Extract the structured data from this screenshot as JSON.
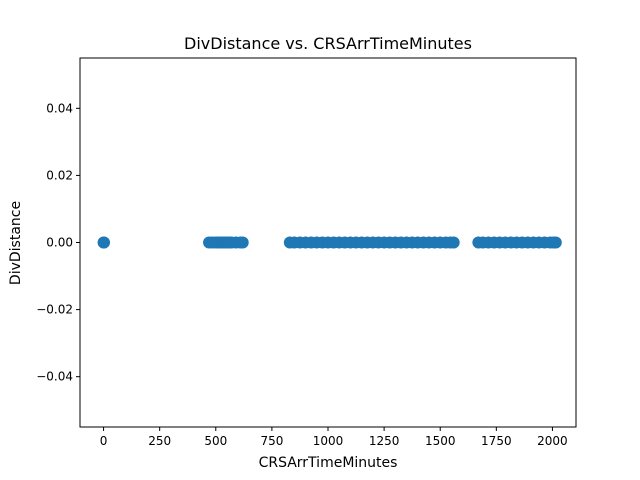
{
  "chart_data": {
    "type": "scatter",
    "title": "DivDistance vs. CRSArrTimeMinutes",
    "xlabel": "CRSArrTimeMinutes",
    "ylabel": "DivDistance",
    "xlim": [
      -105,
      2105
    ],
    "ylim": [
      -0.055,
      0.055
    ],
    "xticks": [
      0,
      250,
      500,
      750,
      1000,
      1250,
      1500,
      1750,
      2000
    ],
    "xtick_labels": [
      "0",
      "250",
      "500",
      "750",
      "1000",
      "1250",
      "1500",
      "1750",
      "2000"
    ],
    "yticks": [
      -0.04,
      -0.02,
      0.0,
      0.02,
      0.04
    ],
    "ytick_labels": [
      "−0.04",
      "−0.02",
      "0.00",
      "0.02",
      "0.04"
    ],
    "grid": false,
    "marker_color": "#1f77b4",
    "points": [
      {
        "x": 0,
        "y": 0
      },
      {
        "x": 2,
        "y": 0
      },
      {
        "x": 470,
        "y": 0
      },
      {
        "x": 485,
        "y": 0
      },
      {
        "x": 500,
        "y": 0
      },
      {
        "x": 510,
        "y": 0
      },
      {
        "x": 520,
        "y": 0
      },
      {
        "x": 530,
        "y": 0
      },
      {
        "x": 540,
        "y": 0
      },
      {
        "x": 550,
        "y": 0
      },
      {
        "x": 560,
        "y": 0
      },
      {
        "x": 570,
        "y": 0
      },
      {
        "x": 590,
        "y": 0
      },
      {
        "x": 610,
        "y": 0
      },
      {
        "x": 620,
        "y": 0
      },
      {
        "x": 830,
        "y": 0
      },
      {
        "x": 850,
        "y": 0
      },
      {
        "x": 875,
        "y": 0
      },
      {
        "x": 900,
        "y": 0
      },
      {
        "x": 925,
        "y": 0
      },
      {
        "x": 950,
        "y": 0
      },
      {
        "x": 975,
        "y": 0
      },
      {
        "x": 1000,
        "y": 0
      },
      {
        "x": 1025,
        "y": 0
      },
      {
        "x": 1050,
        "y": 0
      },
      {
        "x": 1075,
        "y": 0
      },
      {
        "x": 1100,
        "y": 0
      },
      {
        "x": 1125,
        "y": 0
      },
      {
        "x": 1150,
        "y": 0
      },
      {
        "x": 1175,
        "y": 0
      },
      {
        "x": 1200,
        "y": 0
      },
      {
        "x": 1225,
        "y": 0
      },
      {
        "x": 1250,
        "y": 0
      },
      {
        "x": 1275,
        "y": 0
      },
      {
        "x": 1300,
        "y": 0
      },
      {
        "x": 1325,
        "y": 0
      },
      {
        "x": 1350,
        "y": 0
      },
      {
        "x": 1375,
        "y": 0
      },
      {
        "x": 1400,
        "y": 0
      },
      {
        "x": 1425,
        "y": 0
      },
      {
        "x": 1450,
        "y": 0
      },
      {
        "x": 1475,
        "y": 0
      },
      {
        "x": 1500,
        "y": 0
      },
      {
        "x": 1525,
        "y": 0
      },
      {
        "x": 1545,
        "y": 0
      },
      {
        "x": 1560,
        "y": 0
      },
      {
        "x": 1670,
        "y": 0
      },
      {
        "x": 1690,
        "y": 0
      },
      {
        "x": 1715,
        "y": 0
      },
      {
        "x": 1740,
        "y": 0
      },
      {
        "x": 1765,
        "y": 0
      },
      {
        "x": 1790,
        "y": 0
      },
      {
        "x": 1815,
        "y": 0
      },
      {
        "x": 1840,
        "y": 0
      },
      {
        "x": 1865,
        "y": 0
      },
      {
        "x": 1890,
        "y": 0
      },
      {
        "x": 1915,
        "y": 0
      },
      {
        "x": 1940,
        "y": 0
      },
      {
        "x": 1965,
        "y": 0
      },
      {
        "x": 1990,
        "y": 0
      },
      {
        "x": 2005,
        "y": 0
      },
      {
        "x": 2015,
        "y": 0
      }
    ]
  }
}
